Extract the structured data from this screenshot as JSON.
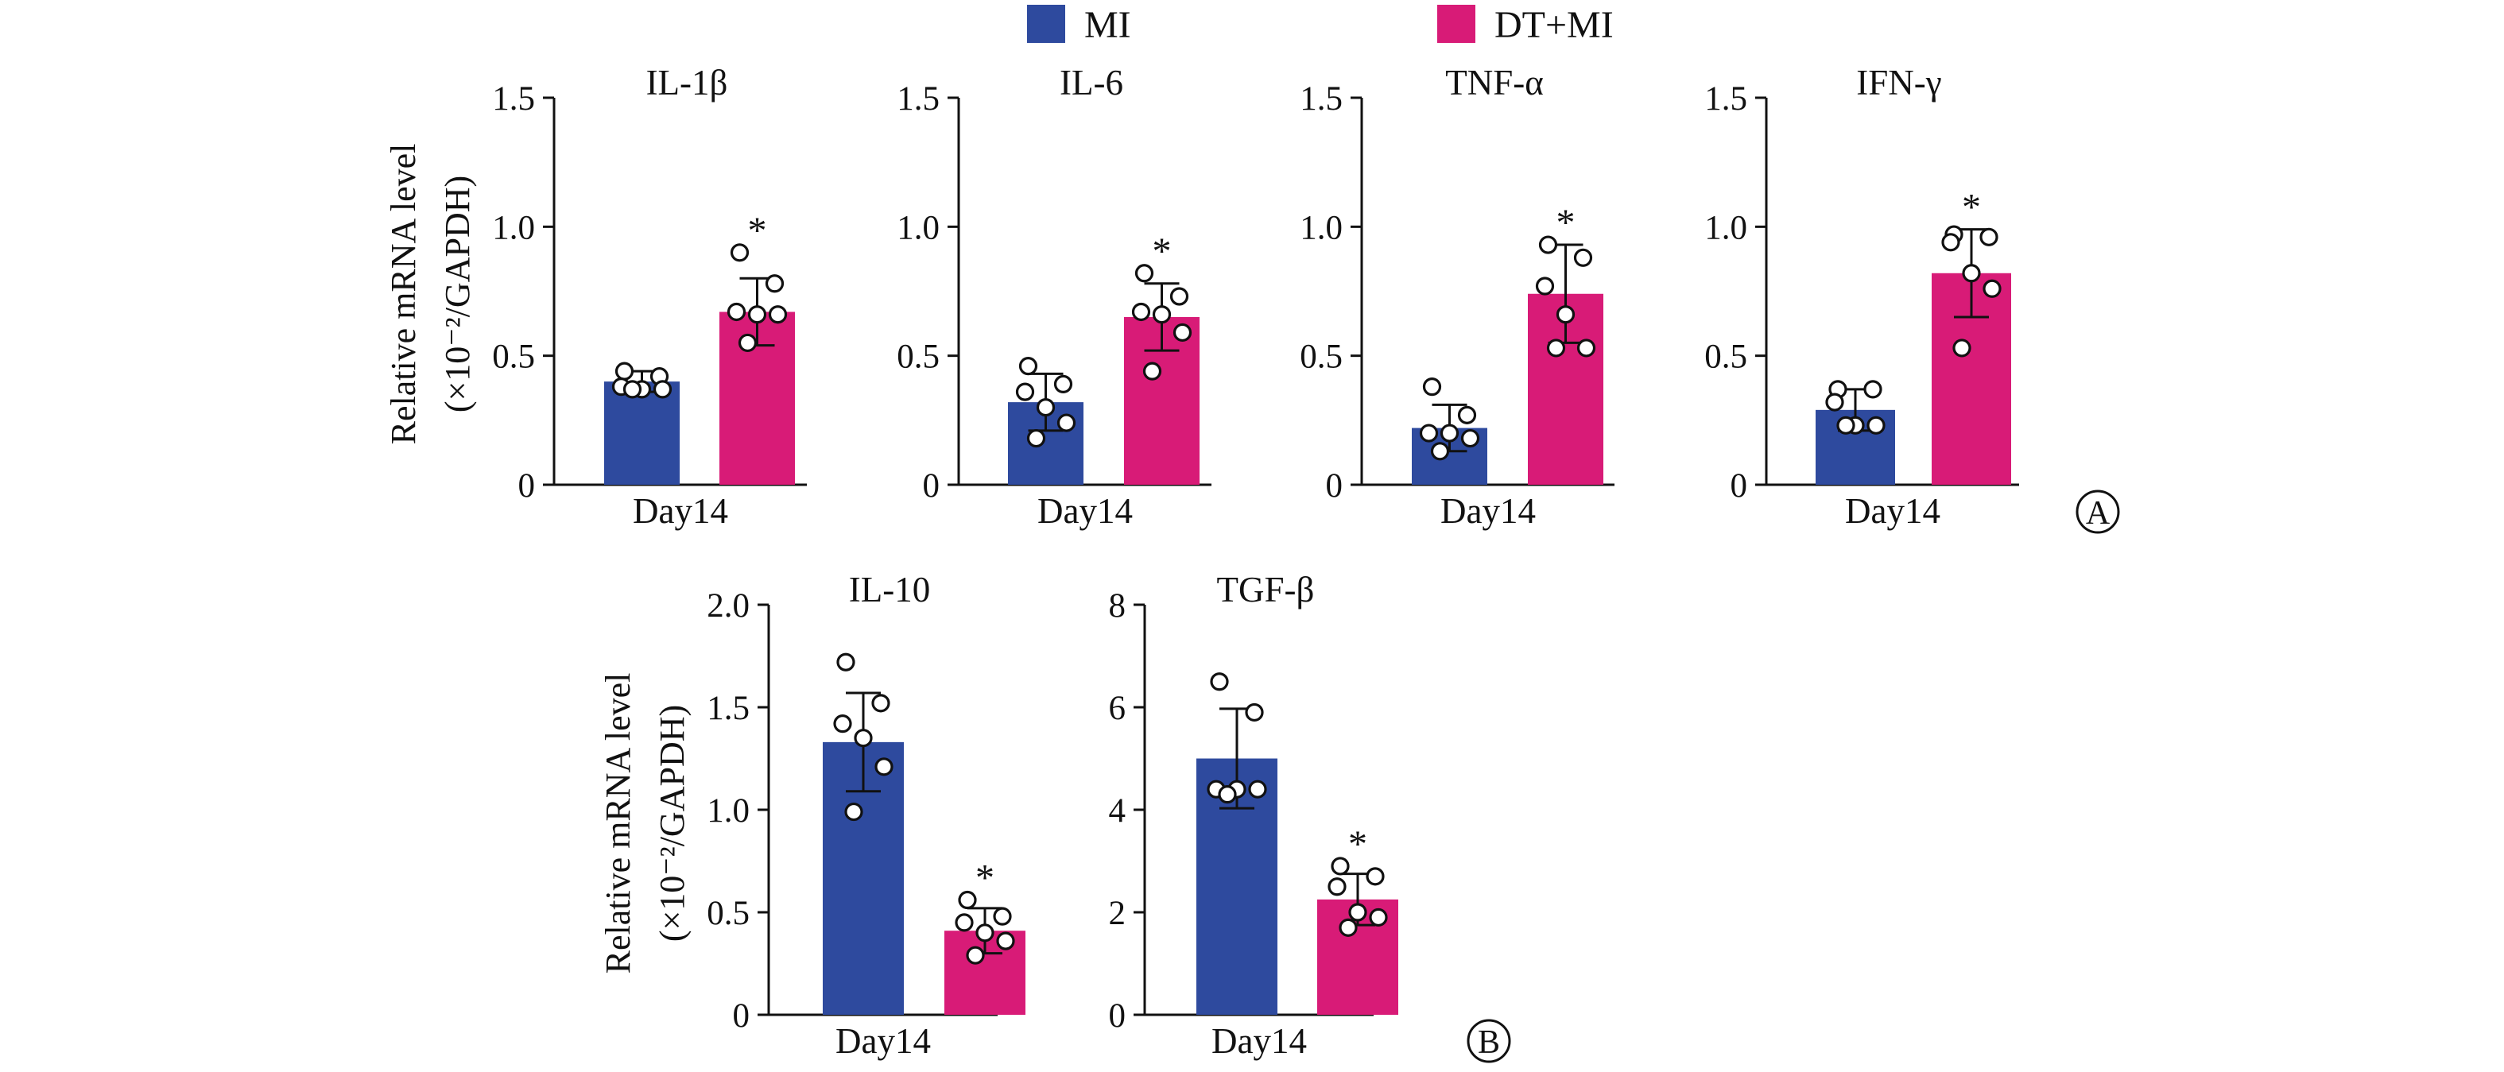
{
  "legend": [
    {
      "label": "MI",
      "color": "#2E4A9E"
    },
    {
      "label": "DT+MI",
      "color": "#D81B77"
    }
  ],
  "y_label_line1": "Relative mRNA level",
  "y_label_line2": "(×10⁻²/GAPDH)",
  "panel_labels": {
    "A": "A",
    "B": "B"
  },
  "significance_marker": "*",
  "chart_data": [
    {
      "type": "bar",
      "title": "IL-1β",
      "categories": [
        "Day14"
      ],
      "ylim": [
        0,
        1.5
      ],
      "yticks": [
        0,
        0.5,
        1.0,
        1.5
      ],
      "series": [
        {
          "name": "MI",
          "value": 0.4,
          "error": 0.04,
          "points": [
            0.44,
            0.42,
            0.38,
            0.37,
            0.37,
            0.37
          ]
        },
        {
          "name": "DT+MI",
          "value": 0.67,
          "error": 0.13,
          "points": [
            0.9,
            0.78,
            0.67,
            0.66,
            0.66,
            0.55
          ],
          "significant": true
        }
      ]
    },
    {
      "type": "bar",
      "title": "IL-6",
      "categories": [
        "Day14"
      ],
      "ylim": [
        0,
        1.5
      ],
      "yticks": [
        0,
        0.5,
        1.0,
        1.5
      ],
      "series": [
        {
          "name": "MI",
          "value": 0.32,
          "error": 0.11,
          "points": [
            0.46,
            0.39,
            0.36,
            0.3,
            0.24,
            0.18
          ]
        },
        {
          "name": "DT+MI",
          "value": 0.65,
          "error": 0.13,
          "points": [
            0.82,
            0.73,
            0.67,
            0.66,
            0.59,
            0.44
          ]
        }
      ]
    },
    {
      "type": "bar",
      "title": "TNF-α",
      "categories": [
        "Day14"
      ],
      "ylim": [
        0,
        1.5
      ],
      "yticks": [
        0,
        0.5,
        1.0,
        1.5
      ],
      "series": [
        {
          "name": "MI",
          "value": 0.22,
          "error": 0.09,
          "points": [
            0.38,
            0.27,
            0.2,
            0.2,
            0.18,
            0.13
          ]
        },
        {
          "name": "DT+MI",
          "value": 0.74,
          "error": 0.19,
          "points": [
            0.93,
            0.88,
            0.77,
            0.66,
            0.53,
            0.53
          ],
          "significant": true
        }
      ]
    },
    {
      "type": "bar",
      "title": "IFN-γ",
      "categories": [
        "Day14"
      ],
      "ylim": [
        0,
        1.5
      ],
      "yticks": [
        0,
        0.5,
        1.0,
        1.5
      ],
      "series": [
        {
          "name": "MI",
          "value": 0.29,
          "error": 0.08,
          "points": [
            0.37,
            0.37,
            0.32,
            0.23,
            0.23,
            0.23
          ]
        },
        {
          "name": "DT+MI",
          "value": 0.82,
          "error": 0.17,
          "points": [
            0.97,
            0.96,
            0.94,
            0.82,
            0.76,
            0.53
          ],
          "significant": true
        }
      ]
    },
    {
      "type": "bar",
      "title": "IL-10",
      "categories": [
        "Day14"
      ],
      "ylim": [
        0,
        2.0
      ],
      "yticks": [
        0,
        0.5,
        1.0,
        1.5,
        2.0
      ],
      "series": [
        {
          "name": "MI",
          "value": 1.33,
          "error": 0.24,
          "points": [
            1.72,
            1.52,
            1.42,
            1.35,
            1.21,
            0.99
          ]
        },
        {
          "name": "DT+MI",
          "value": 0.41,
          "error": 0.11,
          "points": [
            0.56,
            0.48,
            0.45,
            0.4,
            0.36,
            0.29
          ],
          "significant": true
        }
      ]
    },
    {
      "type": "bar",
      "title": "TGF-β",
      "categories": [
        "Day14"
      ],
      "ylim": [
        0,
        8
      ],
      "yticks": [
        0,
        2,
        4,
        6,
        8
      ],
      "series": [
        {
          "name": "MI",
          "value": 5.0,
          "error": 0.97,
          "points": [
            6.5,
            5.9,
            4.4,
            4.4,
            4.4,
            4.3
          ]
        },
        {
          "name": "DT+MI",
          "value": 2.25,
          "error": 0.5,
          "points": [
            2.9,
            2.7,
            2.5,
            2.0,
            1.9,
            1.7
          ],
          "significant": true
        }
      ]
    }
  ]
}
